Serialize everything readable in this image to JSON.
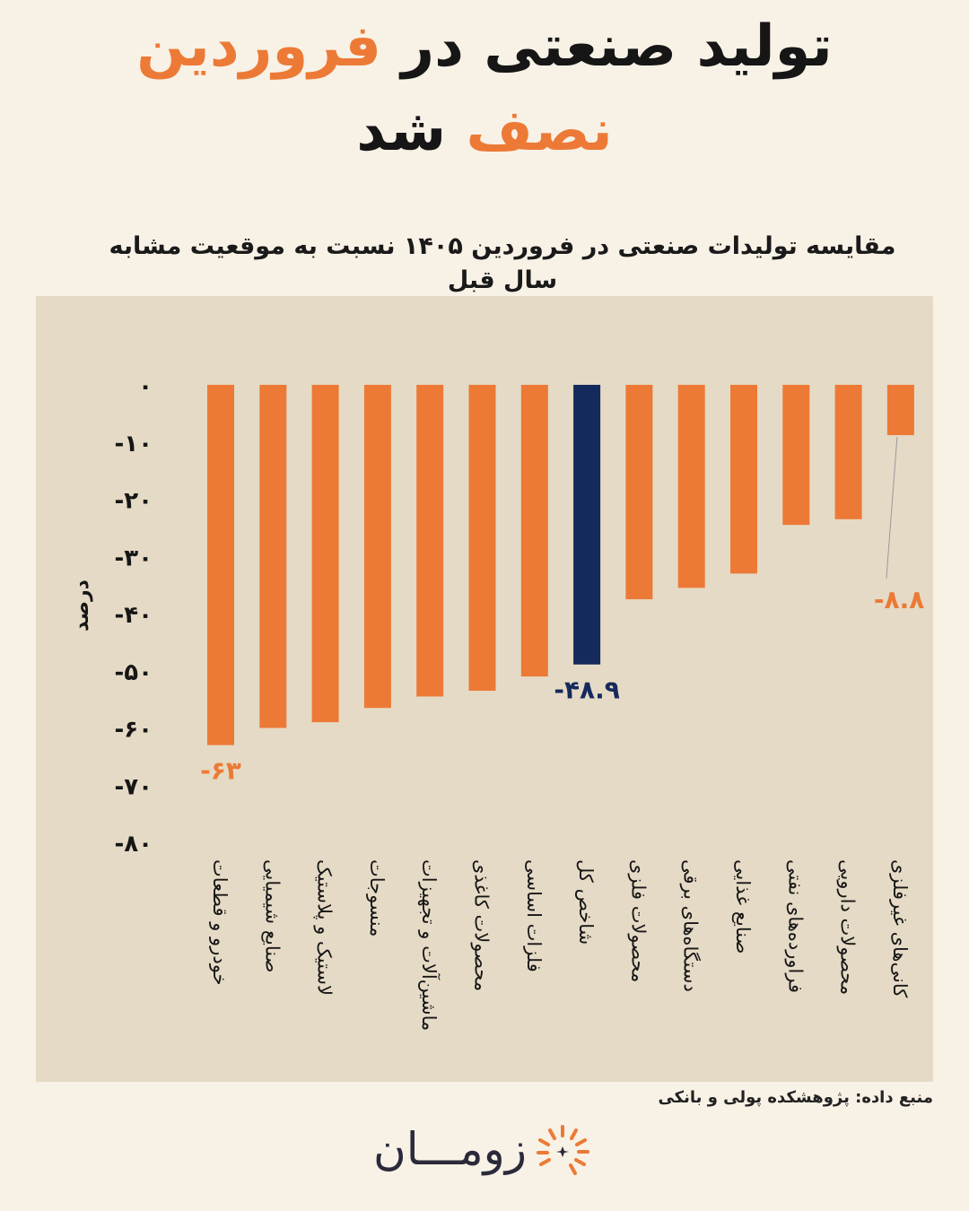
{
  "title": {
    "line1_part1": "تولید صنعتی در",
    "line1_highlight": "فروردین",
    "line2_highlight": "نصف",
    "line2_part2": "شد"
  },
  "colors": {
    "background": "#f8f1e6",
    "panel": "#e5dac5",
    "accent_orange": "#ec7a36",
    "highlight_navy": "#152a5c",
    "text_dark": "#161616"
  },
  "chart_data": {
    "type": "bar",
    "title": "مقایسه تولیدات صنعتی در فروردین ۱۴۰۵ نسبت به موقعیت مشابه سال قبل",
    "ylabel": "درصد",
    "xlabel": "",
    "ylim": [
      -80,
      0
    ],
    "yticks": [
      0,
      -10,
      -20,
      -30,
      -40,
      -50,
      -60,
      -70,
      -80
    ],
    "ytick_labels": [
      "۰",
      "-۱۰",
      "-۲۰",
      "-۳۰",
      "-۴۰",
      "-۵۰",
      "-۶۰",
      "-۷۰",
      "-۸۰"
    ],
    "grid": false,
    "categories": [
      "خودرو و قطعات",
      "صنایع شیمیایی",
      "لاستیک و پلاستیک",
      "منسوجات",
      "ماشین‌آلات و تجهیزات",
      "محصولات کاغذی",
      "فلزات اساسی",
      "شاخص کل",
      "محصولات فلزی",
      "دستگاه‌های برقی",
      "صنایع غذایی",
      "فراورده‌های نفتی",
      "محصولات دارویی",
      "کانی‌های غیرفلزی"
    ],
    "values": [
      -63,
      -60,
      -59,
      -56.5,
      -54.5,
      -53.5,
      -51,
      -48.9,
      -37.5,
      -35.5,
      -33,
      -24.5,
      -23.5,
      -8.8
    ],
    "highlight_index": 7,
    "data_labels": [
      {
        "index": 0,
        "text": "-۶۳"
      },
      {
        "index": 7,
        "text": "-۴۸.۹"
      },
      {
        "index": 13,
        "text": "-۸.۸"
      }
    ]
  },
  "source": "منبع داده: پژوهشکده پولی و بانکی",
  "logo": {
    "text": "زومـــان",
    "icon": "sunburst-logo-icon"
  }
}
